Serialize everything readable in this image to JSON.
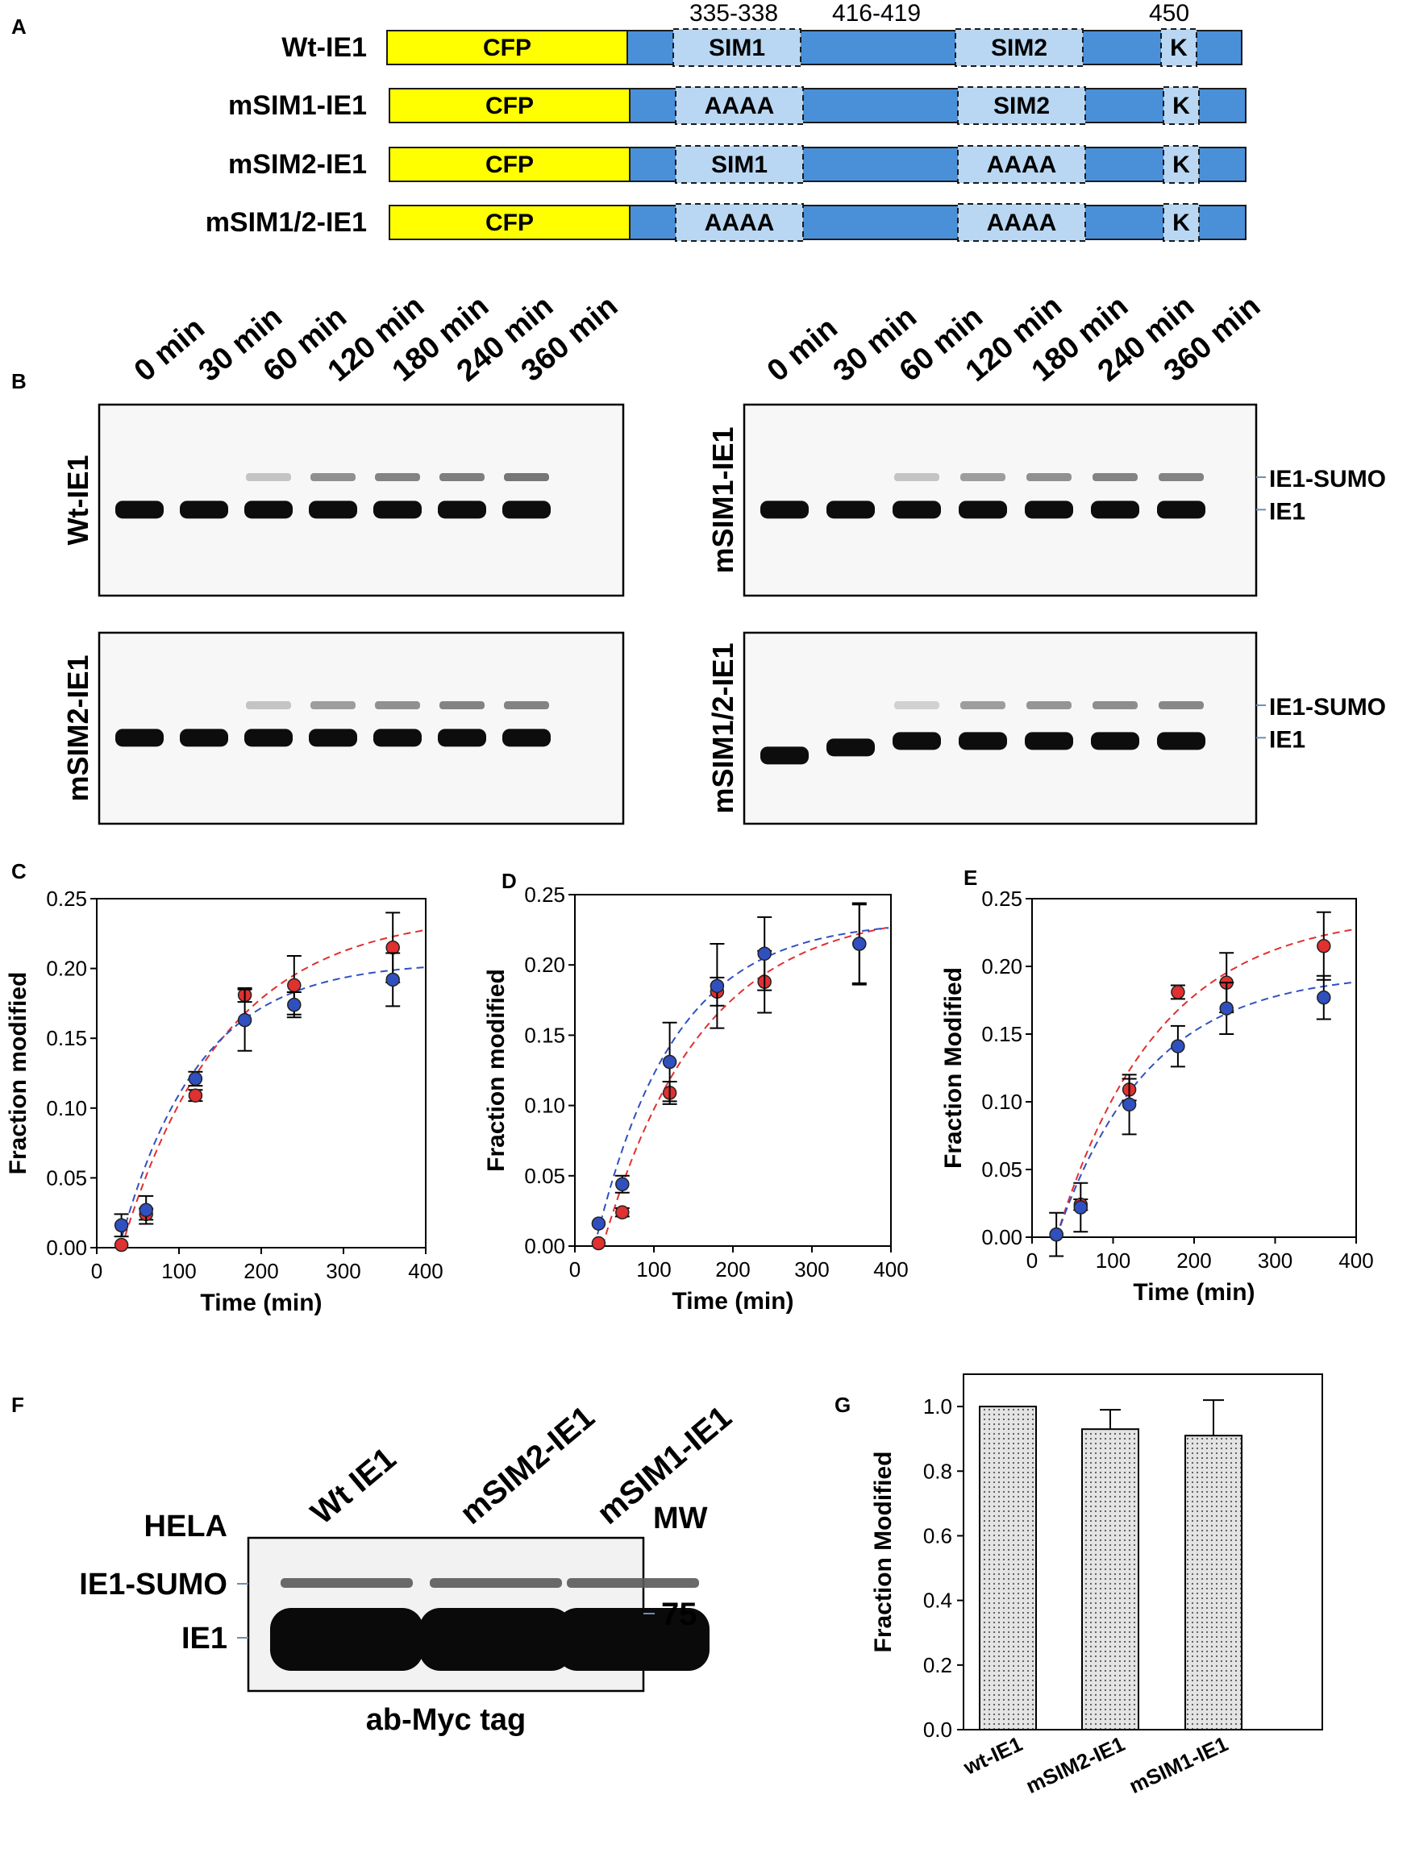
{
  "panelA": {
    "letter": "A",
    "positions": [
      "335-338",
      "416-419",
      "450"
    ],
    "cfp_label": "CFP",
    "k_label": "K",
    "constructs": [
      {
        "name": "Wt-IE1",
        "site1": "SIM1",
        "site2": "SIM2"
      },
      {
        "name": "mSIM1-IE1",
        "site1": "AAAA",
        "site2": "SIM2"
      },
      {
        "name": "mSIM2-IE1",
        "site1": "SIM1",
        "site2": "AAAA"
      },
      {
        "name": "mSIM1/2-IE1",
        "site1": "AAAA",
        "site2": "AAAA"
      }
    ],
    "colors": {
      "cfp": "#ffff00",
      "body": "#4a90d9",
      "site": "#b9d7f2"
    }
  },
  "panelB": {
    "letter": "B",
    "timepoints": [
      "0 min",
      "30 min",
      "60 min",
      "120 min",
      "180 min",
      "240 min",
      "360 min"
    ],
    "blots": [
      {
        "label": "Wt-IE1",
        "sumo_intensity": [
          0.0,
          0.0,
          0.15,
          0.35,
          0.4,
          0.42,
          0.45
        ]
      },
      {
        "label": "mSIM1-IE1",
        "sumo_intensity": [
          0.0,
          0.0,
          0.15,
          0.3,
          0.35,
          0.4,
          0.4
        ]
      },
      {
        "label": "mSIM2-IE1",
        "sumo_intensity": [
          0.0,
          0.0,
          0.15,
          0.3,
          0.35,
          0.4,
          0.4
        ]
      },
      {
        "label": "mSIM1/2-IE1",
        "sumo_intensity": [
          0.0,
          0.0,
          0.1,
          0.3,
          0.33,
          0.36,
          0.38
        ]
      }
    ],
    "band_labels": {
      "sumo": "IE1-SUMO",
      "ie1": "IE1"
    }
  },
  "chart_data": [
    {
      "panel": "C",
      "type": "scatter",
      "xlabel": "Time (min)",
      "ylabel": "Fraction modified",
      "xlim": [
        0,
        400
      ],
      "ylim": [
        0,
        0.25
      ],
      "xticks": [
        "0",
        "100",
        "200",
        "300",
        "400"
      ],
      "yticks": [
        "0.00",
        "0.05",
        "0.10",
        "0.15",
        "0.20",
        "0.25"
      ],
      "series": [
        {
          "name": "red",
          "color": "#e03030",
          "x": [
            30,
            60,
            120,
            180,
            240,
            360
          ],
          "values": [
            0.002,
            0.024,
            0.109,
            0.181,
            0.188,
            0.215
          ],
          "errors": [
            0,
            0.004,
            0.004,
            0.005,
            0.021,
            0.025
          ],
          "fit": {
            "plateau": 0.24,
            "k": 0.008,
            "t0": 30
          }
        },
        {
          "name": "blue",
          "color": "#3050c0",
          "x": [
            30,
            60,
            120,
            180,
            240,
            360
          ],
          "values": [
            0.016,
            0.027,
            0.121,
            0.163,
            0.174,
            0.192
          ],
          "errors": [
            0.008,
            0.01,
            0.005,
            0.022,
            0.009,
            0.019
          ],
          "fit": {
            "plateau": 0.205,
            "k": 0.0105,
            "t0": 27
          }
        }
      ]
    },
    {
      "panel": "D",
      "type": "scatter",
      "xlabel": "Time (min)",
      "ylabel": "Fraction modified",
      "xlim": [
        0,
        400
      ],
      "ylim": [
        0,
        0.25
      ],
      "xticks": [
        "0",
        "100",
        "200",
        "300",
        "400"
      ],
      "yticks": [
        "0.00",
        "0.05",
        "0.10",
        "0.15",
        "0.20",
        "0.25"
      ],
      "series": [
        {
          "name": "red",
          "color": "#e03030",
          "x": [
            30,
            60,
            120,
            180,
            240,
            360
          ],
          "values": [
            0.002,
            0.024,
            0.109,
            0.181,
            0.188,
            0.215
          ],
          "errors": [
            0,
            0.003,
            0.008,
            0.01,
            0.022,
            0.028
          ],
          "fit": {
            "plateau": 0.24,
            "k": 0.008,
            "t0": 35
          }
        },
        {
          "name": "blue",
          "color": "#3050c0",
          "x": [
            30,
            60,
            120,
            180,
            240,
            360
          ],
          "values": [
            0.016,
            0.044,
            0.131,
            0.185,
            0.208,
            0.215
          ],
          "errors": [
            0,
            0.006,
            0.028,
            0.03,
            0.026,
            0.029
          ],
          "fit": {
            "plateau": 0.232,
            "k": 0.01,
            "t0": 25
          }
        }
      ]
    },
    {
      "panel": "E",
      "type": "scatter",
      "xlabel": "Time (min)",
      "ylabel": "Fraction Modified",
      "xlim": [
        0,
        400
      ],
      "ylim": [
        0,
        0.25
      ],
      "xticks": [
        "0",
        "100",
        "200",
        "300",
        "400"
      ],
      "yticks": [
        "0.00",
        "0.05",
        "0.10",
        "0.15",
        "0.20",
        "0.25"
      ],
      "series": [
        {
          "name": "red",
          "color": "#e03030",
          "x": [
            30,
            60,
            120,
            180,
            240,
            360
          ],
          "values": [
            0.002,
            0.024,
            0.109,
            0.181,
            0.188,
            0.215
          ],
          "errors": [
            0,
            0.004,
            0.008,
            0.005,
            0.022,
            0.025
          ],
          "fit": {
            "plateau": 0.24,
            "k": 0.008,
            "t0": 30
          }
        },
        {
          "name": "blue",
          "color": "#3050c0",
          "x": [
            30,
            60,
            120,
            180,
            240,
            360
          ],
          "values": [
            0.002,
            0.022,
            0.098,
            0.141,
            0.169,
            0.177
          ],
          "errors": [
            0.016,
            0.018,
            0.022,
            0.015,
            0.019,
            0.016
          ],
          "fit": {
            "plateau": 0.196,
            "k": 0.0088,
            "t0": 30
          }
        }
      ]
    },
    {
      "panel": "G",
      "type": "bar",
      "categories": [
        "wt-IE1",
        "mSIM2-IE1",
        "mSIM1-IE1"
      ],
      "values": [
        1.0,
        0.93,
        0.91
      ],
      "errors": [
        0,
        0.06,
        0.11
      ],
      "ylabel": "Fraction Modified",
      "ylim": [
        0,
        1.1
      ],
      "yticks": [
        "0.0",
        "0.2",
        "0.4",
        "0.6",
        "0.8",
        "1.0"
      ]
    }
  ],
  "panelF": {
    "letter": "F",
    "cell_line": "HELA",
    "lanes": [
      "Wt IE1",
      "mSIM2-IE1",
      "mSIM1-IE1"
    ],
    "mw_label": "MW",
    "mw_value": "75",
    "band_labels": {
      "sumo": "IE1-SUMO",
      "ie1": "IE1"
    },
    "antibody": "ab-Myc tag"
  },
  "panelG": {
    "letter": "G"
  }
}
